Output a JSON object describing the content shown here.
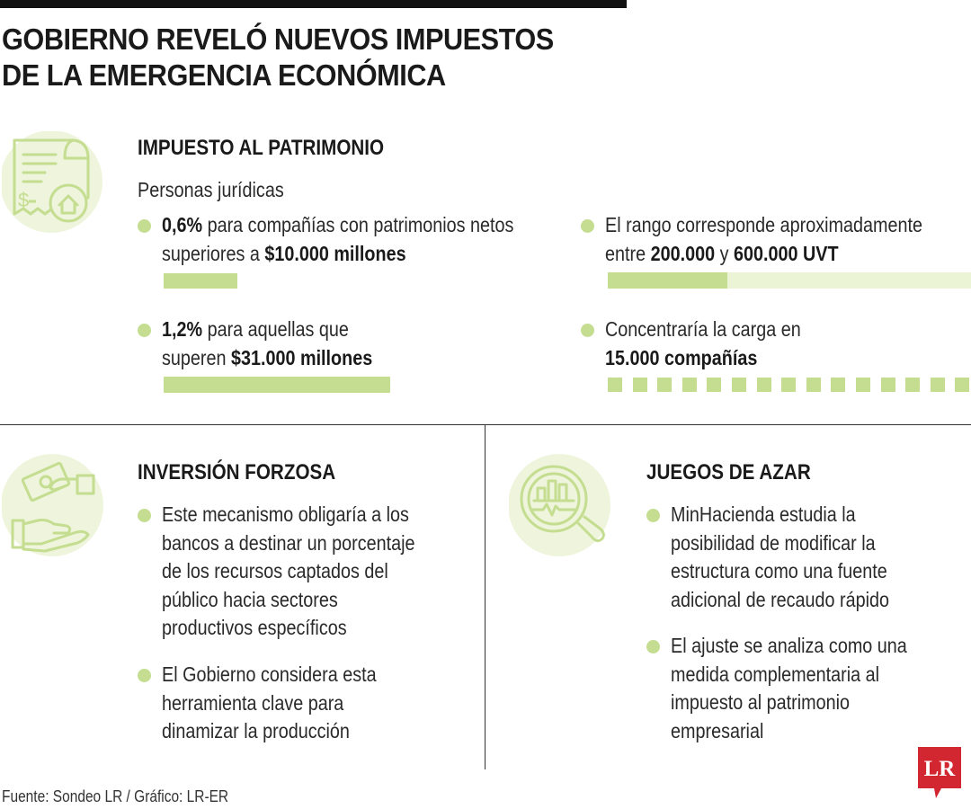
{
  "title": {
    "line1": "GOBIERNO REVELÓ NUEVOS IMPUESTOS",
    "line2": "DE LA EMERGENCIA ECONÓMICA"
  },
  "patrimonio": {
    "icon": "tax-document-house-icon",
    "heading": "IMPUESTO AL PATRIMONIO",
    "subheading": "Personas jurídicas",
    "bullets": [
      {
        "bold1": "0,6%",
        "text1": " para compañías con patrimonios netos",
        "text2": "superiores a ",
        "bold2": "$10.000 millones"
      },
      {
        "bold1": "1,2%",
        "text1": " para aquellas que",
        "text2": "superen ",
        "bold2": "$31.000 millones"
      },
      {
        "text1": "El rango corresponde aproximadamente",
        "text2a": "entre ",
        "bold2a": "200.000",
        "text2b": " y ",
        "bold2b": "600.000 UVT"
      },
      {
        "text1": "Concentraría la carga en",
        "bold2": "15.000 compañías"
      }
    ],
    "range_filled_fraction": 0.33
  },
  "inversion": {
    "icon": "hands-money-icon",
    "heading": "INVERSIÓN FORZOSA",
    "bullets": [
      [
        "Este mecanismo obligaría a los",
        "bancos a destinar un porcentaje",
        "de los recursos captados del",
        "público hacia sectores",
        "productivos específicos"
      ],
      [
        "El Gobierno considera esta",
        "herramienta clave para",
        "dinamizar la producción"
      ]
    ]
  },
  "juegos": {
    "icon": "magnifier-chart-icon",
    "heading": "JUEGOS DE AZAR",
    "bullets": [
      [
        "MinHacienda estudia la",
        "posibilidad de modificar la",
        "estructura como una fuente",
        "adicional de recaudo rápido"
      ],
      [
        "El ajuste se analiza como una",
        "medida complementaria al",
        "impuesto al patrimonio",
        "empresarial"
      ]
    ]
  },
  "source": "Fuente: Sondeo LR / Gráfico: LR-ER",
  "logo_text": "LR",
  "colors": {
    "accent": "#c4dd90",
    "accent_light": "#ebf4d4",
    "icon_circle": "#eef5dc",
    "logo_red": "#d22630"
  }
}
